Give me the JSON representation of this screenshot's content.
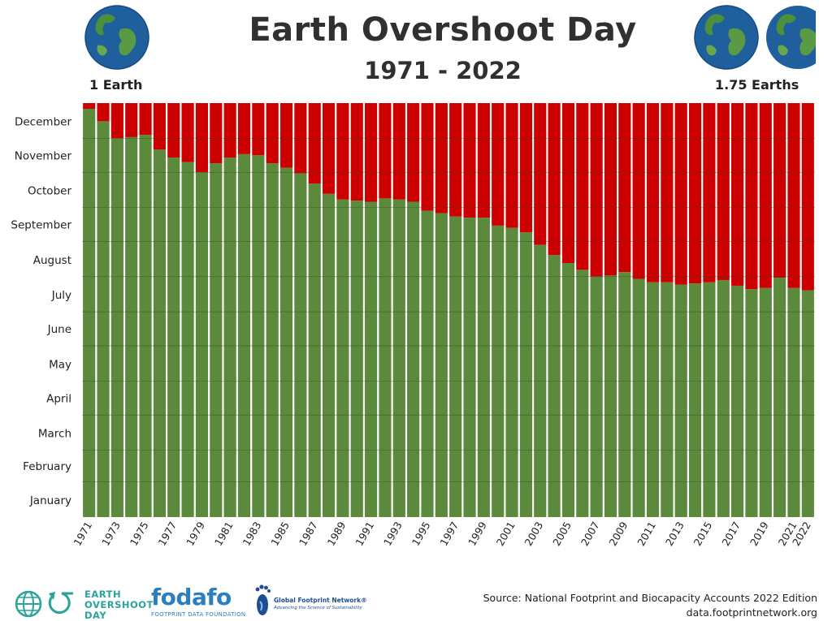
{
  "header": {
    "title": "Earth Overshoot Day",
    "subtitle": "1971 - 2022",
    "left_label": "1 Earth",
    "right_label": "1.75 Earths"
  },
  "chart_data": {
    "type": "bar",
    "title": "Earth Overshoot Day",
    "subtitle": "1971 - 2022",
    "xlabel": "",
    "ylabel": "",
    "y_unit": "day of year",
    "ylim": [
      0,
      365
    ],
    "y_ticks": [
      {
        "label": "January",
        "value": 15
      },
      {
        "label": "February",
        "value": 45
      },
      {
        "label": "March",
        "value": 74
      },
      {
        "label": "April",
        "value": 105
      },
      {
        "label": "May",
        "value": 135
      },
      {
        "label": "June",
        "value": 166
      },
      {
        "label": "July",
        "value": 196
      },
      {
        "label": "August",
        "value": 227
      },
      {
        "label": "September",
        "value": 258
      },
      {
        "label": "October",
        "value": 288
      },
      {
        "label": "November",
        "value": 319
      },
      {
        "label": "December",
        "value": 349
      }
    ],
    "categories": [
      "1971",
      "1972",
      "1973",
      "1974",
      "1975",
      "1976",
      "1977",
      "1978",
      "1979",
      "1980",
      "1981",
      "1982",
      "1983",
      "1984",
      "1985",
      "1986",
      "1987",
      "1988",
      "1989",
      "1990",
      "1991",
      "1992",
      "1993",
      "1994",
      "1995",
      "1996",
      "1997",
      "1998",
      "1999",
      "2000",
      "2001",
      "2002",
      "2003",
      "2004",
      "2005",
      "2006",
      "2007",
      "2008",
      "2009",
      "2010",
      "2011",
      "2012",
      "2013",
      "2014",
      "2015",
      "2016",
      "2017",
      "2018",
      "2019",
      "2020",
      "2021",
      "2022"
    ],
    "x_tick_labels": [
      "1971",
      "1973",
      "1975",
      "1977",
      "1979",
      "1981",
      "1983",
      "1985",
      "1987",
      "1989",
      "1991",
      "1993",
      "1995",
      "1997",
      "1999",
      "2001",
      "2003",
      "2005",
      "2007",
      "2009",
      "2011",
      "2013",
      "2015",
      "2017",
      "2019",
      "2021",
      "2022"
    ],
    "series": [
      {
        "color": "#5b8a3c",
        "values": [
          360,
          349,
          334,
          335,
          337,
          324,
          317,
          313,
          304,
          312,
          317,
          320,
          319,
          312,
          308,
          303,
          294,
          285,
          280,
          279,
          278,
          281,
          280,
          278,
          270,
          268,
          265,
          264,
          264,
          257,
          255,
          251,
          240,
          231,
          224,
          218,
          212,
          213,
          216,
          210,
          207,
          207,
          205,
          206,
          207,
          209,
          204,
          201,
          202,
          211,
          202,
          200
        ]
      },
      {
        "color": "#cc0000",
        "values": [
          5,
          16,
          31,
          30,
          28,
          41,
          48,
          52,
          61,
          53,
          48,
          45,
          46,
          53,
          57,
          62,
          71,
          80,
          85,
          86,
          87,
          84,
          85,
          87,
          95,
          97,
          100,
          101,
          101,
          108,
          110,
          114,
          125,
          134,
          141,
          147,
          153,
          152,
          149,
          155,
          158,
          158,
          160,
          159,
          158,
          156,
          161,
          164,
          163,
          154,
          163,
          165
        ]
      }
    ],
    "stacked": true,
    "grid": true,
    "legend": "none"
  },
  "footer": {
    "logo1_line1": "EARTH",
    "logo1_line2": "OVERSHOOT",
    "logo1_line3": "DAY",
    "logo2_name": "fodafo",
    "logo2_tagline": "FOOTPRINT DATA FOUNDATION",
    "logo3_name": "Global Footprint Network®",
    "logo3_tagline": "Advancing the Science of Sustainability",
    "source": "Source: National Footprint and Biocapacity Accounts 2022 Edition",
    "url": "data.footprintnetwork.org"
  },
  "colors": {
    "green": "#5b8a3c",
    "red": "#cc0000",
    "logo_teal": "#2aa39a",
    "logo_blue": "#2b7fc0"
  }
}
